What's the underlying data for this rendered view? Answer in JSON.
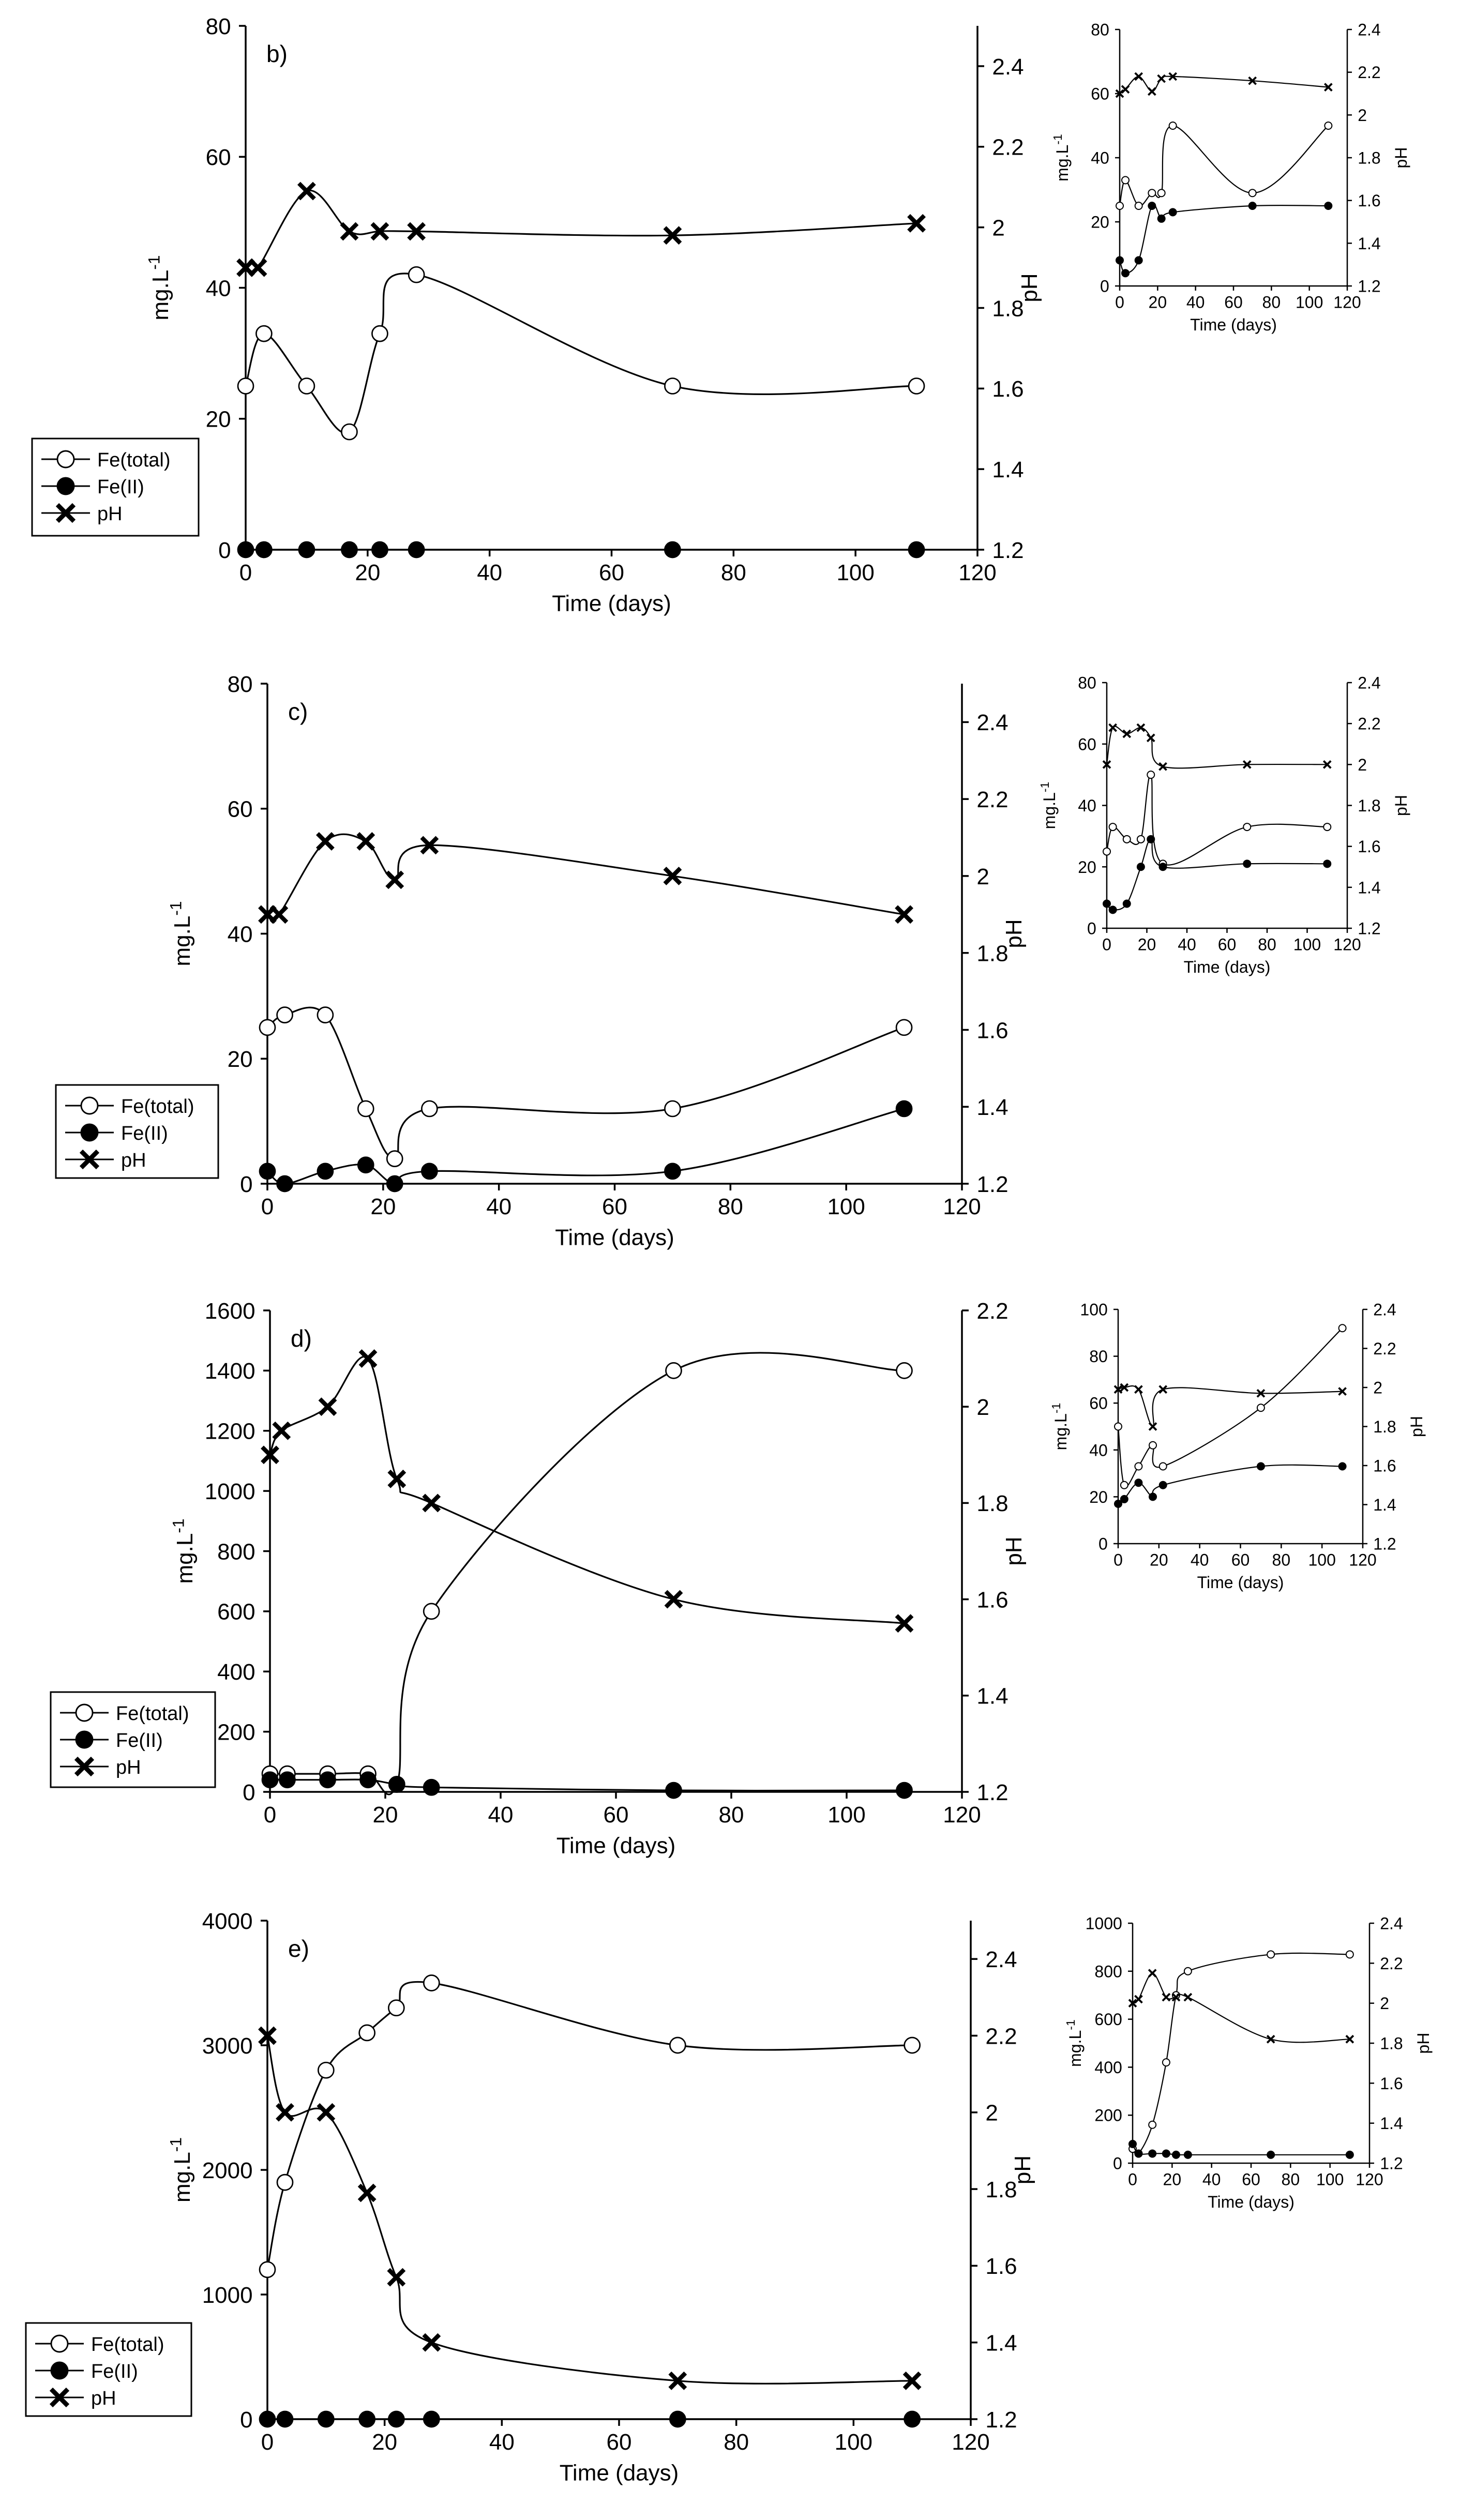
{
  "figure": {
    "x_label": "Time (days)",
    "y_label_base": "mg.L",
    "y_label_exp": "-1",
    "y2_label": "pH",
    "legend": [
      "Fe(total)",
      "Fe(II)",
      "pH"
    ]
  },
  "chart_data": [
    {
      "id": "b",
      "panel_label": "b)",
      "type": "line",
      "xlim": [
        0,
        120
      ],
      "x_ticks": [
        0,
        20,
        40,
        60,
        80,
        100,
        120
      ],
      "ylim": [
        0,
        80
      ],
      "y_ticks": [
        0,
        20,
        40,
        60,
        80
      ],
      "y2lim": [
        1.2,
        2.5
      ],
      "y2_ticks": [
        1.2,
        1.4,
        1.6,
        1.8,
        2.0,
        2.2,
        2.4
      ],
      "series": [
        {
          "name": "Fe(total)",
          "x": [
            0,
            3,
            10,
            17,
            22,
            28,
            70,
            110
          ],
          "values": [
            25,
            33,
            25,
            18,
            33,
            42,
            25,
            25
          ]
        },
        {
          "name": "Fe(II)",
          "x": [
            0,
            3,
            10,
            17,
            22,
            28,
            70,
            110
          ],
          "values": [
            0,
            0,
            0,
            0,
            0,
            0,
            0,
            0
          ]
        },
        {
          "name": "pH",
          "x": [
            0,
            2,
            10,
            17,
            22,
            28,
            70,
            110
          ],
          "values": [
            1.9,
            1.9,
            2.09,
            1.99,
            1.99,
            1.99,
            1.98,
            2.01
          ]
        }
      ],
      "inset": {
        "xlim": [
          0,
          120
        ],
        "x_ticks": [
          0,
          20,
          40,
          60,
          80,
          100,
          120
        ],
        "ylim": [
          0,
          80
        ],
        "y_ticks": [
          0,
          20,
          40,
          60,
          80
        ],
        "y2lim": [
          1.2,
          2.4
        ],
        "y2_ticks": [
          1.2,
          1.4,
          1.6,
          1.8,
          2.0,
          2.2,
          2.4
        ],
        "series": [
          {
            "name": "Fe(total)",
            "x": [
              0,
              3,
              10,
              17,
              22,
              28,
              70,
              110
            ],
            "values": [
              25,
              33,
              25,
              29,
              29,
              50,
              29,
              50
            ]
          },
          {
            "name": "Fe(II)",
            "x": [
              0,
              3,
              10,
              17,
              22,
              28,
              70,
              110
            ],
            "values": [
              8,
              4,
              8,
              25,
              21,
              23,
              25,
              25
            ]
          },
          {
            "name": "pH",
            "x": [
              0,
              3,
              10,
              17,
              22,
              28,
              70,
              110
            ],
            "values": [
              2.1,
              2.12,
              2.18,
              2.11,
              2.17,
              2.18,
              2.16,
              2.13
            ]
          }
        ]
      }
    },
    {
      "id": "c",
      "panel_label": "c)",
      "type": "line",
      "xlim": [
        0,
        120
      ],
      "x_ticks": [
        0,
        20,
        40,
        60,
        80,
        100,
        120
      ],
      "ylim": [
        0,
        80
      ],
      "y_ticks": [
        0,
        20,
        40,
        60,
        80
      ],
      "y2lim": [
        1.2,
        2.5
      ],
      "y2_ticks": [
        1.2,
        1.4,
        1.6,
        1.8,
        2.0,
        2.2,
        2.4
      ],
      "series": [
        {
          "name": "Fe(total)",
          "x": [
            0,
            3,
            10,
            17,
            22,
            28,
            70,
            110
          ],
          "values": [
            25,
            27,
            27,
            12,
            4,
            12,
            12,
            25
          ]
        },
        {
          "name": "Fe(II)",
          "x": [
            0,
            3,
            10,
            17,
            22,
            28,
            70,
            110
          ],
          "values": [
            2,
            0,
            2,
            3,
            0,
            2,
            2,
            12
          ]
        },
        {
          "name": "pH",
          "x": [
            0,
            2,
            10,
            17,
            22,
            28,
            70,
            110
          ],
          "values": [
            1.9,
            1.9,
            2.09,
            2.09,
            1.99,
            2.08,
            2.0,
            1.9
          ]
        }
      ],
      "inset": {
        "xlim": [
          0,
          120
        ],
        "x_ticks": [
          0,
          20,
          40,
          60,
          80,
          100,
          120
        ],
        "ylim": [
          0,
          80
        ],
        "y_ticks": [
          0,
          20,
          40,
          60,
          80
        ],
        "y2lim": [
          1.2,
          2.4
        ],
        "y2_ticks": [
          1.2,
          1.4,
          1.6,
          1.8,
          2.0,
          2.2,
          2.4
        ],
        "series": [
          {
            "name": "Fe(total)",
            "x": [
              0,
              3,
              10,
              17,
              22,
              28,
              70,
              110
            ],
            "values": [
              25,
              33,
              29,
              29,
              50,
              21,
              33,
              33
            ]
          },
          {
            "name": "Fe(II)",
            "x": [
              0,
              3,
              10,
              17,
              22,
              28,
              70,
              110
            ],
            "values": [
              8,
              6,
              8,
              20,
              29,
              20,
              21,
              21
            ]
          },
          {
            "name": "pH",
            "x": [
              0,
              3,
              10,
              17,
              22,
              28,
              70,
              110
            ],
            "values": [
              2.0,
              2.18,
              2.15,
              2.18,
              2.13,
              1.99,
              2.0,
              2.0
            ]
          }
        ]
      }
    },
    {
      "id": "d",
      "panel_label": "d)",
      "type": "line",
      "xlim": [
        0,
        120
      ],
      "x_ticks": [
        0,
        20,
        40,
        60,
        80,
        100,
        120
      ],
      "ylim": [
        0,
        1600
      ],
      "y_ticks": [
        0,
        200,
        400,
        600,
        800,
        1000,
        1200,
        1400,
        1600
      ],
      "y2lim": [
        1.2,
        2.2
      ],
      "y2_ticks": [
        1.2,
        1.4,
        1.6,
        1.8,
        2.0,
        2.2
      ],
      "series": [
        {
          "name": "Fe(total)",
          "x": [
            0,
            3,
            10,
            17,
            22,
            28,
            70,
            110
          ],
          "values": [
            60,
            60,
            60,
            60,
            25,
            600,
            1400,
            1400
          ]
        },
        {
          "name": "Fe(II)",
          "x": [
            0,
            3,
            10,
            17,
            22,
            28,
            70,
            110
          ],
          "values": [
            40,
            40,
            40,
            40,
            25,
            15,
            5,
            5
          ]
        },
        {
          "name": "pH",
          "x": [
            0,
            2,
            10,
            17,
            22,
            28,
            70,
            110
          ],
          "values": [
            1.9,
            1.95,
            2.0,
            2.1,
            1.85,
            1.8,
            1.6,
            1.55
          ]
        }
      ],
      "inset": {
        "xlim": [
          0,
          120
        ],
        "x_ticks": [
          0,
          20,
          40,
          60,
          80,
          100,
          120
        ],
        "ylim": [
          0,
          100
        ],
        "y_ticks": [
          0,
          20,
          40,
          60,
          80,
          100
        ],
        "y2lim": [
          1.2,
          2.4
        ],
        "y2_ticks": [
          1.2,
          1.4,
          1.6,
          1.8,
          2.0,
          2.2,
          2.4
        ],
        "series": [
          {
            "name": "Fe(total)",
            "x": [
              0,
              3,
              10,
              17,
              22,
              70,
              110
            ],
            "values": [
              50,
              25,
              33,
              42,
              33,
              58,
              92
            ]
          },
          {
            "name": "Fe(II)",
            "x": [
              0,
              3,
              10,
              17,
              22,
              70,
              110
            ],
            "values": [
              17,
              19,
              26,
              20,
              25,
              33,
              33
            ]
          },
          {
            "name": "pH",
            "x": [
              0,
              3,
              10,
              17,
              22,
              70,
              110
            ],
            "values": [
              1.99,
              2.0,
              1.99,
              1.8,
              1.99,
              1.97,
              1.98
            ]
          }
        ]
      }
    },
    {
      "id": "e",
      "panel_label": "e)",
      "type": "line",
      "xlim": [
        0,
        120
      ],
      "x_ticks": [
        0,
        20,
        40,
        60,
        80,
        100,
        120
      ],
      "ylim": [
        0,
        4000
      ],
      "y_ticks": [
        0,
        1000,
        2000,
        3000,
        4000
      ],
      "y2lim": [
        1.2,
        2.5
      ],
      "y2_ticks": [
        1.2,
        1.4,
        1.6,
        1.8,
        2.0,
        2.2,
        2.4
      ],
      "series": [
        {
          "name": "Fe(total)",
          "x": [
            0,
            3,
            10,
            17,
            22,
            28,
            70,
            110
          ],
          "values": [
            1200,
            1900,
            2800,
            3100,
            3300,
            3500,
            3000,
            3000
          ]
        },
        {
          "name": "Fe(II)",
          "x": [
            0,
            3,
            10,
            17,
            22,
            28,
            70,
            110
          ],
          "values": [
            0,
            0,
            0,
            0,
            0,
            0,
            0,
            0
          ]
        },
        {
          "name": "pH",
          "x": [
            0,
            3,
            10,
            17,
            22,
            28,
            70,
            110
          ],
          "values": [
            2.2,
            2.0,
            2.0,
            1.79,
            1.57,
            1.4,
            1.3,
            1.3
          ]
        }
      ],
      "inset": {
        "xlim": [
          0,
          120
        ],
        "x_ticks": [
          0,
          20,
          40,
          60,
          80,
          100,
          120
        ],
        "ylim": [
          0,
          1000
        ],
        "y_ticks": [
          0,
          200,
          400,
          600,
          800,
          1000
        ],
        "y2lim": [
          1.2,
          2.4
        ],
        "y2_ticks": [
          1.2,
          1.4,
          1.6,
          1.8,
          2.0,
          2.2,
          2.4
        ],
        "series": [
          {
            "name": "Fe(total)",
            "x": [
              0,
              3,
              10,
              17,
              22,
              28,
              70,
              110
            ],
            "values": [
              60,
              40,
              160,
              420,
              700,
              800,
              870,
              870
            ]
          },
          {
            "name": "Fe(II)",
            "x": [
              0,
              3,
              10,
              17,
              22,
              28,
              70,
              110
            ],
            "values": [
              80,
              40,
              40,
              40,
              35,
              35,
              35,
              35
            ]
          },
          {
            "name": "pH",
            "x": [
              0,
              3,
              10,
              17,
              22,
              28,
              70,
              110
            ],
            "values": [
              2.0,
              2.02,
              2.15,
              2.03,
              2.03,
              2.03,
              1.82,
              1.82
            ]
          }
        ]
      }
    }
  ]
}
